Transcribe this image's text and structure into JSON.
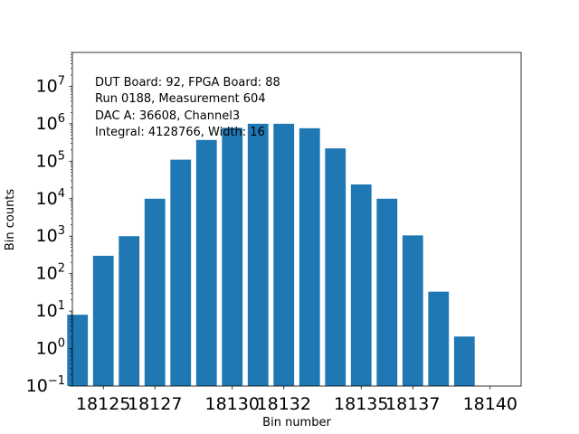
{
  "chart_data": {
    "type": "bar",
    "title": "",
    "xlabel": "Bin number",
    "ylabel": "Bin counts",
    "yscale": "log",
    "ylim": [
      0.1,
      80000000
    ],
    "xlim": [
      18123.8,
      18141.2
    ],
    "grid": false,
    "bar_color": "#1f77b4",
    "x": [
      18124,
      18125,
      18126,
      18127,
      18128,
      18129,
      18130,
      18131,
      18132,
      18133,
      18134,
      18135,
      18136,
      18137,
      18138,
      18139,
      18140
    ],
    "values": [
      8,
      300,
      1000,
      10000,
      110000,
      370000,
      780000,
      1000000,
      1000000,
      760000,
      220000,
      24000,
      10000,
      1050,
      33,
      2.1,
      0.1
    ],
    "xticks": [
      18125,
      18127,
      18130,
      18132,
      18135,
      18137,
      18140
    ],
    "xtick_labels": [
      "18125",
      "18127",
      "18130",
      "18132",
      "18135",
      "18137",
      "18140"
    ],
    "yticks": [
      {
        "value": 0.1,
        "base": "10",
        "exp": "−1"
      },
      {
        "value": 1,
        "base": "10",
        "exp": "0"
      },
      {
        "value": 10,
        "base": "10",
        "exp": "1"
      },
      {
        "value": 100,
        "base": "10",
        "exp": "2"
      },
      {
        "value": 1000,
        "base": "10",
        "exp": "3"
      },
      {
        "value": 10000,
        "base": "10",
        "exp": "4"
      },
      {
        "value": 100000,
        "base": "10",
        "exp": "5"
      },
      {
        "value": 1000000,
        "base": "10",
        "exp": "6"
      },
      {
        "value": 10000000,
        "base": "10",
        "exp": "7"
      }
    ],
    "annotations": [
      "DUT Board: 92, FPGA Board: 88",
      "Run 0188, Measurement 604",
      "DAC A: 36608, Channel3",
      "Integral: 4128766, Width: 16"
    ]
  }
}
